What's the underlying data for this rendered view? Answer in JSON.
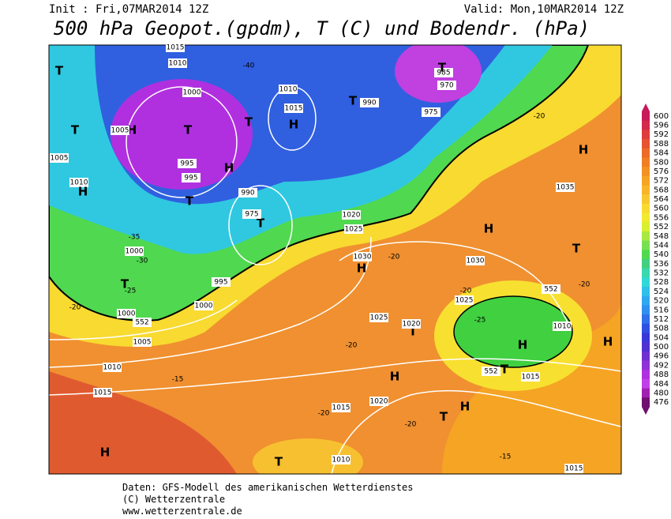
{
  "header": {
    "init": "Init : Fri,07MAR2014 12Z",
    "valid": "Valid: Mon,10MAR2014 12Z",
    "title": "500 hPa Geopot.(gpdm), T (C) und Bodendr. (hPa)"
  },
  "map_labels": [
    "1015",
    "1010",
    "T",
    "1000",
    "H",
    "1005",
    "T",
    "T",
    "1005",
    "1010",
    "H",
    "995",
    "995",
    "H",
    "T",
    "T",
    "990",
    "975",
    "1000",
    "T",
    "995",
    "1000",
    "1000",
    "1005",
    "1010",
    "1015",
    "H",
    "T",
    "1010",
    "1015",
    "H",
    "T",
    "T",
    "990",
    "975",
    "985",
    "970",
    "T",
    "1020",
    "1025",
    "1030",
    "H",
    "1025",
    "T",
    "1020",
    "H",
    "1030",
    "1025",
    "H",
    "1010",
    "1015",
    "T",
    "H",
    "1020",
    "H",
    "T",
    "1015",
    "1010",
    "1015",
    "1035",
    "H",
    "H",
    "T",
    "-40",
    "-35",
    "-30",
    "-25",
    "-20",
    "-15",
    "-20",
    "-20",
    "-20",
    "-25",
    "-20",
    "-20",
    "-15",
    "-20",
    "-20",
    "552",
    "552",
    "552"
  ],
  "legend": {
    "values": [
      600,
      596,
      592,
      588,
      584,
      580,
      576,
      572,
      568,
      564,
      560,
      556,
      552,
      548,
      544,
      540,
      536,
      532,
      528,
      524,
      520,
      516,
      512,
      508,
      504,
      500,
      496,
      492,
      488,
      484,
      480,
      476
    ],
    "colors": [
      "#c8195a",
      "#d42a4c",
      "#de3c3e",
      "#e65232",
      "#ec6a2a",
      "#f07e24",
      "#f29222",
      "#f5a424",
      "#f7b62a",
      "#f8c830",
      "#f8da30",
      "#f0ea30",
      "#d8f030",
      "#a8e840",
      "#78e050",
      "#50d850",
      "#40d080",
      "#38d8b0",
      "#30d8d8",
      "#30c0e8",
      "#30a8f0",
      "#3090f0",
      "#3070e8",
      "#3050e0",
      "#3838d8",
      "#5030d0",
      "#7030d0",
      "#9030d8",
      "#b030e0",
      "#c040e8",
      "#a020b0",
      "#701070"
    ]
  },
  "footer": [
    "Daten: GFS-Modell des amerikanischen Wetterdienstes",
    "(C) Wetterzentrale",
    "www.wetterzentrale.de"
  ]
}
